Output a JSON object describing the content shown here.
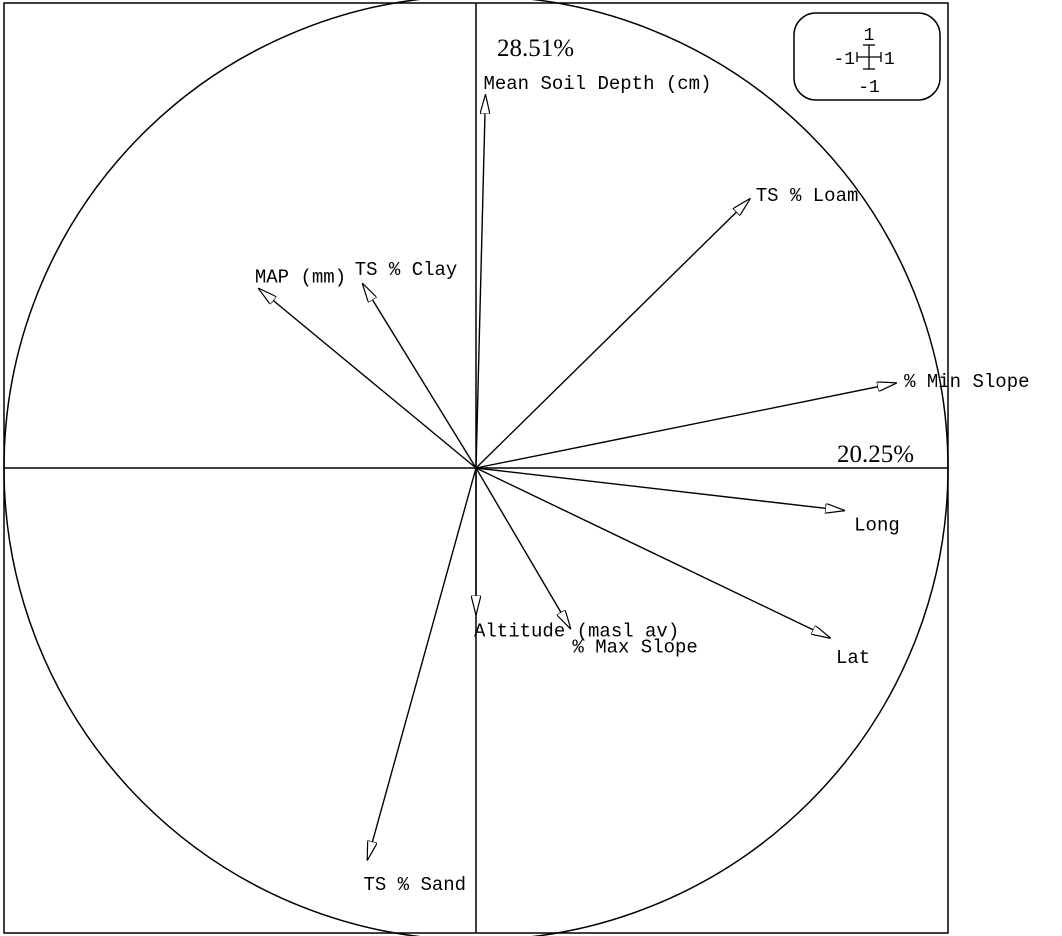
{
  "chart_data": {
    "type": "scatter",
    "subtype": "correlation-circle",
    "title": "",
    "axis_inertia": {
      "horizontal": "20.25%",
      "vertical": "28.51%"
    },
    "scale_box": {
      "top": "1",
      "left": "-1",
      "right": "1",
      "bottom": "-1"
    },
    "xlim": [
      -1,
      1
    ],
    "ylim": [
      -1,
      1
    ],
    "variables": [
      {
        "name": "Mean Soil Depth (cm)",
        "x": 0.02,
        "y": 0.79
      },
      {
        "name": "TS % Loam",
        "x": 0.58,
        "y": 0.57
      },
      {
        "name": "% Min Slope",
        "x": 0.89,
        "y": 0.18
      },
      {
        "name": "MAP (mm)",
        "x": -0.46,
        "y": 0.38
      },
      {
        "name": "TS % Clay",
        "x": -0.24,
        "y": 0.39
      },
      {
        "name": "Long",
        "x": 0.78,
        "y": -0.09
      },
      {
        "name": "Lat",
        "x": 0.75,
        "y": -0.36
      },
      {
        "name": "Altitude (masl av)",
        "x": 0.0,
        "y": -0.31
      },
      {
        "name": "% Max Slope",
        "x": 0.2,
        "y": -0.34
      },
      {
        "name": "TS % Sand",
        "x": -0.23,
        "y": -0.83
      }
    ]
  }
}
